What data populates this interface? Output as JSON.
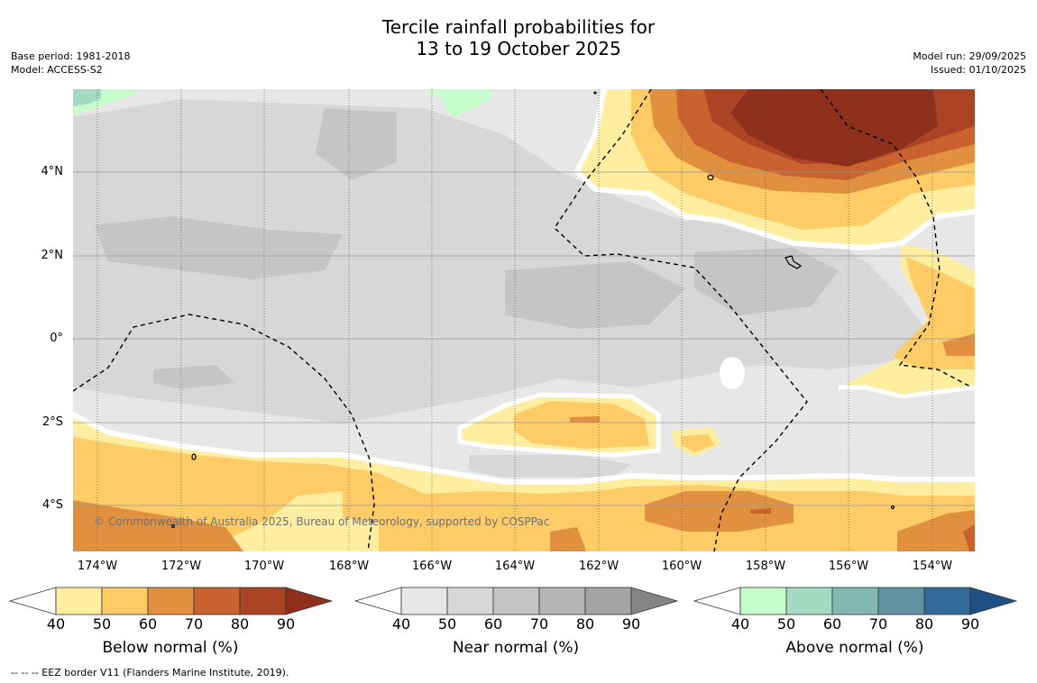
{
  "header": {
    "title_line1": "Tercile rainfall probabilities for",
    "title_line2": "13 to 19 October 2025",
    "base_period": "Base period: 1981-2018",
    "model": "Model: ACCESS-S2",
    "model_run": "Model run: 29/09/2025",
    "issued": "Issued: 01/10/2025"
  },
  "map": {
    "x_labels": [
      "174°W",
      "172°W",
      "170°W",
      "168°W",
      "166°W",
      "164°W",
      "162°W",
      "160°W",
      "158°W",
      "156°W",
      "154°W"
    ],
    "y_labels": [
      "4°N",
      "2°N",
      "0°",
      "2°S",
      "4°S"
    ],
    "copyright": "© Commonwealth of Australia 2025, Bureau of Meteorology, supported by COSPPac"
  },
  "colorbars": [
    {
      "title": "Below normal (%)",
      "ticks": [
        "40",
        "50",
        "60",
        "70",
        "80",
        "90"
      ],
      "colors": [
        "#ffeea0",
        "#fdcc66",
        "#e1903f",
        "#c9622f",
        "#ab4424"
      ],
      "extend": "#8f301d"
    },
    {
      "title": "Near normal (%)",
      "ticks": [
        "40",
        "50",
        "60",
        "70",
        "80",
        "90"
      ],
      "colors": [
        "#e7e7e7",
        "#d7d7d7",
        "#c5c5c5",
        "#b5b5b5",
        "#a4a4a4"
      ],
      "extend": "#858585"
    },
    {
      "title": "Above normal (%)",
      "ticks": [
        "40",
        "50",
        "60",
        "70",
        "80",
        "90"
      ],
      "colors": [
        "#c7fccb",
        "#a2dbc2",
        "#82b8b1",
        "#5f94a0",
        "#336a9a"
      ],
      "extend": "#1c4f86"
    }
  ],
  "footnote": "--  --  -- EEZ border V11 (Flanders Marine Institute, 2019)."
}
